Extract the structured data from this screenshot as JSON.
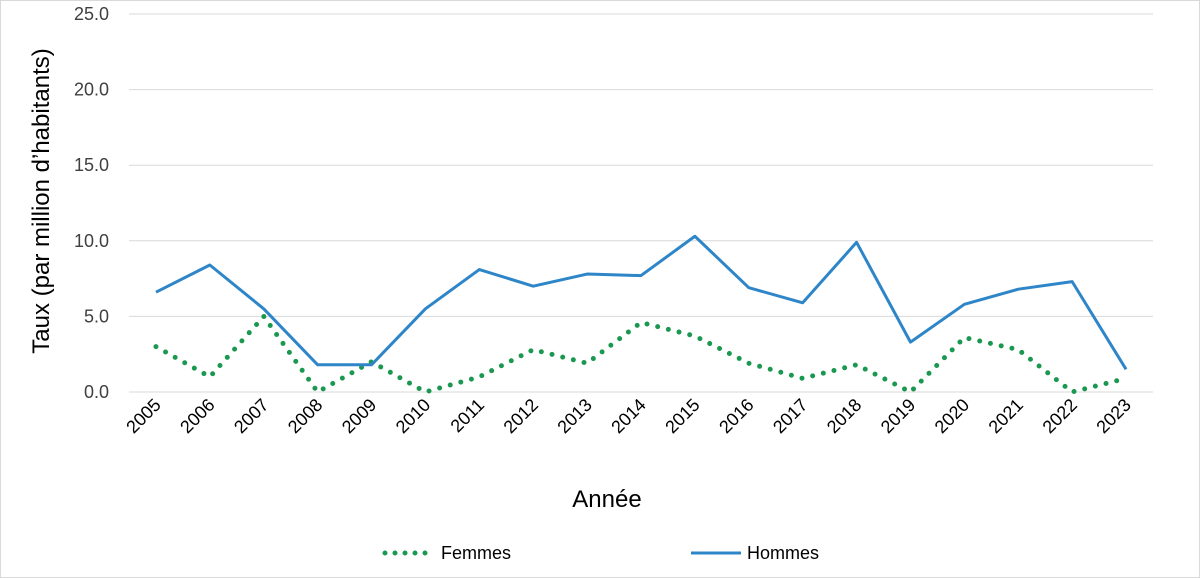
{
  "chart_data": {
    "type": "line",
    "title": "",
    "xlabel": "Année",
    "ylabel": "Taux (par million d’habitants)",
    "categories": [
      "2005",
      "2006",
      "2007",
      "2008",
      "2009",
      "2010",
      "2011",
      "2012",
      "2013",
      "2014",
      "2015",
      "2016",
      "2017",
      "2018",
      "2019",
      "2020",
      "2021",
      "2022",
      "2023"
    ],
    "ylim": [
      0,
      25
    ],
    "yticks": [
      "0.0",
      "5.0",
      "10.0",
      "15.0",
      "20.0",
      "25.0"
    ],
    "grid": true,
    "legend_position": "bottom",
    "series": [
      {
        "name": "Femmes",
        "color": "#1a9850",
        "style": "dotted",
        "values": [
          3.0,
          1.0,
          5.0,
          0.0,
          2.0,
          0.0,
          1.0,
          2.8,
          1.9,
          4.6,
          3.7,
          1.9,
          0.9,
          1.8,
          0.0,
          3.6,
          2.8,
          0.0,
          0.9
        ]
      },
      {
        "name": "Hommes",
        "color": "#2e86c8",
        "style": "solid",
        "values": [
          6.6,
          8.4,
          5.5,
          1.8,
          1.8,
          5.5,
          8.1,
          7.0,
          7.8,
          7.7,
          10.3,
          6.9,
          5.9,
          9.9,
          3.3,
          5.8,
          6.8,
          7.3,
          1.5
        ]
      }
    ]
  }
}
